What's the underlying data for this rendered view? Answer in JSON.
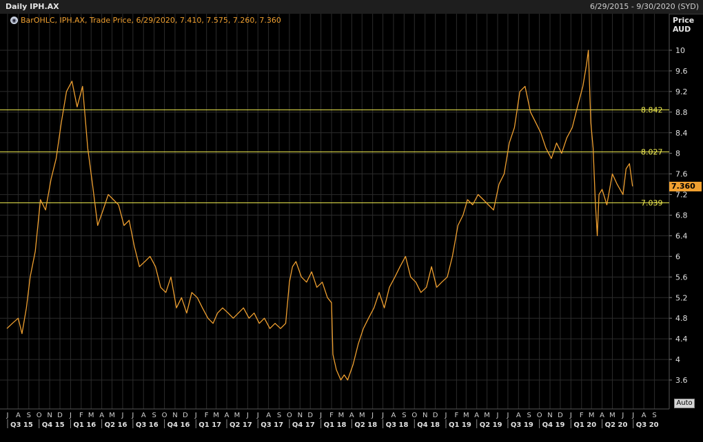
{
  "header": {
    "title": "Daily IPH.AX",
    "date_range": "6/29/2015 - 9/30/2020 (SYD)"
  },
  "legend": {
    "icon": "globe-icon",
    "text": "BarOHLC, IPH.AX, Trade Price, 6/29/2020, 7.410, 7.575, 7.260, 7.360"
  },
  "axis": {
    "label_line1": "Price",
    "label_line2": "AUD"
  },
  "auto_label": "Auto",
  "colors": {
    "price": "#f0a030",
    "hline": "#f2ee50",
    "grid": "#2c2c2c",
    "background": "#000000"
  },
  "chart_data": {
    "type": "line",
    "title": "Daily IPH.AX",
    "ylabel": "Price AUD",
    "ylim": [
      3.2,
      10.8
    ],
    "xlim": [
      "2015-06-29",
      "2020-09-30"
    ],
    "y_ticks": [
      3.6,
      4,
      4.4,
      4.8,
      5.2,
      5.6,
      6,
      6.4,
      6.8,
      7.2,
      7.6,
      8,
      8.4,
      8.8,
      9.2,
      9.6,
      10
    ],
    "y_tick_labels": [
      "3.6",
      "4",
      "4.4",
      "4.8",
      "5.2",
      "5.6",
      "6",
      "6.4",
      "6.8",
      "7.2",
      "7.6",
      "8",
      "8.4",
      "8.8",
      "9.2",
      "9.6",
      "10"
    ],
    "month_labels": [
      "J",
      "A",
      "S",
      "O",
      "N",
      "D",
      "J",
      "F",
      "M",
      "A",
      "M",
      "J",
      "J",
      "A",
      "S",
      "O",
      "N",
      "D",
      "J",
      "F",
      "M",
      "A",
      "M",
      "J",
      "J",
      "A",
      "S",
      "O",
      "N",
      "D",
      "J",
      "F",
      "M",
      "A",
      "M",
      "J",
      "J",
      "A",
      "S",
      "O",
      "N",
      "D",
      "J",
      "F",
      "M",
      "A",
      "M",
      "J",
      "J",
      "A",
      "S",
      "O",
      "N",
      "D",
      "J",
      "F",
      "M",
      "A",
      "M",
      "J",
      "J",
      "A",
      "S"
    ],
    "quarter_labels": [
      "Q3 15",
      "Q4 15",
      "Q1 16",
      "Q2 16",
      "Q3 16",
      "Q4 16",
      "Q1 17",
      "Q2 17",
      "Q3 17",
      "Q4 17",
      "Q1 18",
      "Q2 18",
      "Q3 18",
      "Q4 18",
      "Q1 19",
      "Q2 19",
      "Q3 19",
      "Q4 19",
      "Q1 20",
      "Q2 20",
      "Q3 20"
    ],
    "horizontal_lines": [
      {
        "value": 8.842,
        "label": "8.842"
      },
      {
        "value": 8.027,
        "label": "8.027"
      },
      {
        "value": 7.039,
        "label": "7.039"
      }
    ],
    "last_price": {
      "value": 7.36,
      "label": "7.360"
    },
    "series": [
      {
        "name": "IPH.AX",
        "x": [
          "2015-06-29",
          "2015-07-15",
          "2015-08-01",
          "2015-08-12",
          "2015-08-25",
          "2015-09-05",
          "2015-09-20",
          "2015-10-05",
          "2015-10-20",
          "2015-11-05",
          "2015-11-20",
          "2015-12-05",
          "2015-12-20",
          "2016-01-05",
          "2016-01-20",
          "2016-02-05",
          "2016-02-20",
          "2016-03-05",
          "2016-03-20",
          "2016-04-05",
          "2016-04-20",
          "2016-05-05",
          "2016-05-20",
          "2016-06-05",
          "2016-06-20",
          "2016-07-05",
          "2016-07-20",
          "2016-08-05",
          "2016-08-20",
          "2016-09-05",
          "2016-09-20",
          "2016-10-05",
          "2016-10-20",
          "2016-11-05",
          "2016-11-20",
          "2016-12-05",
          "2016-12-20",
          "2017-01-05",
          "2017-01-20",
          "2017-02-05",
          "2017-02-20",
          "2017-03-05",
          "2017-03-20",
          "2017-04-05",
          "2017-04-20",
          "2017-05-05",
          "2017-05-20",
          "2017-06-05",
          "2017-06-20",
          "2017-07-05",
          "2017-07-20",
          "2017-08-05",
          "2017-08-20",
          "2017-09-05",
          "2017-09-20",
          "2017-10-01",
          "2017-10-10",
          "2017-10-20",
          "2017-11-05",
          "2017-11-20",
          "2017-12-05",
          "2017-12-20",
          "2018-01-05",
          "2018-01-20",
          "2018-02-01",
          "2018-02-05",
          "2018-02-15",
          "2018-02-28",
          "2018-03-10",
          "2018-03-20",
          "2018-04-05",
          "2018-04-20",
          "2018-05-05",
          "2018-05-20",
          "2018-06-05",
          "2018-06-20",
          "2018-07-05",
          "2018-07-20",
          "2018-08-05",
          "2018-08-20",
          "2018-09-05",
          "2018-09-20",
          "2018-10-05",
          "2018-10-20",
          "2018-11-05",
          "2018-11-20",
          "2018-12-05",
          "2018-12-20",
          "2019-01-05",
          "2019-01-20",
          "2019-02-05",
          "2019-02-20",
          "2019-03-05",
          "2019-03-20",
          "2019-04-05",
          "2019-04-20",
          "2019-05-05",
          "2019-05-20",
          "2019-06-05",
          "2019-06-20",
          "2019-07-05",
          "2019-07-20",
          "2019-08-05",
          "2019-08-20",
          "2019-09-05",
          "2019-09-20",
          "2019-10-05",
          "2019-10-20",
          "2019-11-05",
          "2019-11-20",
          "2019-12-05",
          "2019-12-20",
          "2020-01-05",
          "2020-01-20",
          "2020-02-05",
          "2020-02-15",
          "2020-02-21",
          "2020-02-28",
          "2020-03-06",
          "2020-03-12",
          "2020-03-18",
          "2020-03-23",
          "2020-04-01",
          "2020-04-15",
          "2020-05-01",
          "2020-05-15",
          "2020-06-01",
          "2020-06-10",
          "2020-06-20",
          "2020-06-29"
        ],
        "values": [
          4.6,
          4.7,
          4.8,
          4.5,
          5.0,
          5.6,
          6.1,
          7.1,
          6.9,
          7.5,
          7.9,
          8.6,
          9.2,
          9.4,
          8.9,
          9.3,
          8.1,
          7.4,
          6.6,
          6.9,
          7.2,
          7.1,
          7.0,
          6.6,
          6.7,
          6.2,
          5.8,
          5.9,
          6.0,
          5.8,
          5.4,
          5.3,
          5.6,
          5.0,
          5.2,
          4.9,
          5.3,
          5.2,
          5.0,
          4.8,
          4.7,
          4.9,
          5.0,
          4.9,
          4.8,
          4.9,
          5.0,
          4.8,
          4.9,
          4.7,
          4.8,
          4.6,
          4.7,
          4.6,
          4.7,
          5.5,
          5.8,
          5.9,
          5.6,
          5.5,
          5.7,
          5.4,
          5.5,
          5.2,
          5.1,
          4.1,
          3.8,
          3.6,
          3.7,
          3.6,
          3.9,
          4.3,
          4.6,
          4.8,
          5.0,
          5.3,
          5.0,
          5.4,
          5.6,
          5.8,
          6.0,
          5.6,
          5.5,
          5.3,
          5.4,
          5.8,
          5.4,
          5.5,
          5.6,
          6.0,
          6.6,
          6.8,
          7.1,
          7.0,
          7.2,
          7.1,
          7.0,
          6.9,
          7.4,
          7.6,
          8.2,
          8.5,
          9.2,
          9.3,
          8.8,
          8.6,
          8.4,
          8.1,
          7.9,
          8.2,
          8.0,
          8.3,
          8.5,
          8.9,
          9.3,
          9.7,
          10.0,
          8.6,
          8.1,
          7.1,
          6.4,
          7.2,
          7.3,
          7.0,
          7.6,
          7.4,
          7.2,
          7.7,
          7.8,
          7.36
        ]
      }
    ]
  }
}
